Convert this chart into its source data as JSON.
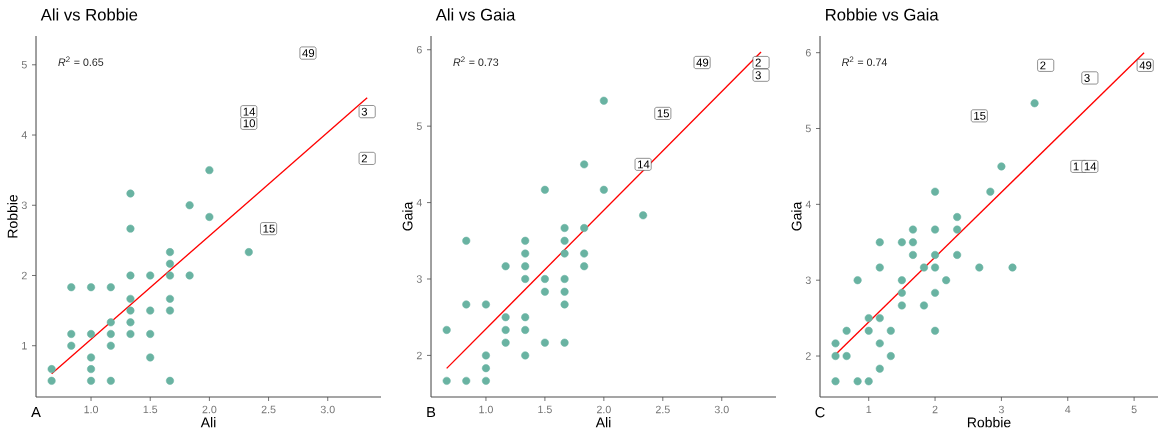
{
  "chart_data": [
    {
      "type": "scatter",
      "title": "Ali vs Robbie",
      "xlabel": "Ali",
      "ylabel": "Robbie",
      "marker": "circle",
      "xlim": [
        0.535,
        3.45
      ],
      "ylim": [
        0.27,
        5.41
      ],
      "xticks": [
        {
          "value": 1,
          "label": "1.0"
        },
        {
          "value": 1.5,
          "label": "1.5"
        },
        {
          "value": 2,
          "label": "2.0"
        },
        {
          "value": 2.5,
          "label": "2.5"
        },
        {
          "value": 3,
          "label": "3.0"
        }
      ],
      "yticks": [
        1,
        2,
        3,
        4,
        5
      ],
      "series": [
        {
          "color": "#69b3a2",
          "x": [
            0.667,
            0.667,
            0.833,
            0.833,
            0.833,
            1,
            1,
            1,
            1,
            1,
            1.167,
            1.167,
            1.167,
            1.167,
            1.167,
            1.333,
            1.333,
            1.333,
            1.333,
            1.333,
            1.333,
            1.333,
            1.5,
            1.5,
            1.5,
            1.5,
            1.667,
            1.667,
            1.667,
            1.667,
            1.667,
            1.667,
            1.833,
            1.833,
            2,
            2,
            2.333
          ],
          "values": [
            0.667,
            0.5,
            1.833,
            1.167,
            1,
            1.833,
            1.167,
            0.833,
            0.667,
            0.5,
            1.833,
            1.333,
            1.167,
            1,
            0.5,
            3.167,
            2.667,
            2,
            1.667,
            1.5,
            1.333,
            1.167,
            2,
            1.5,
            1.167,
            0.833,
            2.333,
            2.167,
            2,
            1.667,
            1.5,
            0.5,
            3,
            2,
            3.5,
            2.833,
            2.333
          ]
        },
        {
          "type": "line",
          "marker": "none",
          "color": "#ff0000",
          "x": [
            0.667,
            3.333
          ],
          "values": [
            0.6,
            4.53
          ]
        }
      ],
      "annotations": [
        "*R*$^{2}$ = 0.65",
        "A",
        {
          "text": "49",
          "x": 2.833,
          "y": 5.167
        },
        {
          "text": "10",
          "x": 2.333,
          "y": 4.167
        },
        {
          "text": "14",
          "x": 2.333,
          "y": 4.333
        },
        {
          "text": "3",
          "x": 3.333,
          "y": 4.333
        },
        {
          "text": "2",
          "x": 3.333,
          "y": 3.667
        },
        {
          "text": "15",
          "x": 2.5,
          "y": 2.667
        }
      ]
    },
    {
      "type": "scatter",
      "title": "Ali vs Gaia",
      "xlabel": "Ali",
      "ylabel": "Gaia",
      "marker": "circle",
      "xlim": [
        0.534,
        3.46
      ],
      "ylim": [
        1.456,
        6.18
      ],
      "xticks": [
        {
          "value": 1,
          "label": "1.0"
        },
        {
          "value": 1.5,
          "label": "1.5"
        },
        {
          "value": 2,
          "label": "2.0"
        },
        {
          "value": 2.5,
          "label": "2.5"
        },
        {
          "value": 3,
          "label": "3.0"
        }
      ],
      "yticks": [
        2,
        3,
        4,
        5,
        6
      ],
      "series": [
        {
          "color": "#69b3a2",
          "x": [
            0.667,
            0.667,
            0.833,
            0.833,
            0.833,
            1,
            1,
            1,
            1,
            1.167,
            1.167,
            1.167,
            1.167,
            1.333,
            1.333,
            1.333,
            1.333,
            1.333,
            1.333,
            1.333,
            1.5,
            1.5,
            1.5,
            1.5,
            1.667,
            1.667,
            1.667,
            1.667,
            1.667,
            1.667,
            1.667,
            1.833,
            1.833,
            1.833,
            1.833,
            2,
            2,
            2.333
          ],
          "values": [
            2.333,
            1.667,
            3.5,
            2.667,
            1.667,
            2.667,
            2,
            1.833,
            1.667,
            3.167,
            2.5,
            2.333,
            2.167,
            3.5,
            3.333,
            3.167,
            3,
            2.5,
            2.333,
            2,
            4.167,
            3,
            2.833,
            2.167,
            3.667,
            3.5,
            3.333,
            3,
            2.833,
            2.667,
            2.167,
            4.5,
            3.667,
            3.333,
            3.167,
            5.333,
            4.167,
            3.833
          ]
        },
        {
          "type": "line",
          "marker": "none",
          "color": "#ff0000",
          "x": [
            0.667,
            3.333
          ],
          "values": [
            1.83,
            5.97
          ]
        }
      ],
      "annotations": [
        "*R*$^{2}$ = 0.73",
        "B",
        {
          "text": "49",
          "x": 2.833,
          "y": 5.833
        },
        {
          "text": "2",
          "x": 3.333,
          "y": 5.833
        },
        {
          "text": "3",
          "x": 3.333,
          "y": 5.667
        },
        {
          "text": "15",
          "x": 2.5,
          "y": 5.167
        },
        {
          "text": "14",
          "x": 2.333,
          "y": 4.5
        }
      ]
    },
    {
      "type": "scatter",
      "title": "Robbie vs Gaia",
      "xlabel": "Robbie",
      "ylabel": "Gaia",
      "marker": "circle",
      "xlim": [
        0.266,
        5.36
      ],
      "ylim": [
        1.46,
        6.22
      ],
      "xticks": [
        1,
        2,
        3,
        4,
        5
      ],
      "yticks": [
        2,
        3,
        4,
        5,
        6
      ],
      "series": [
        {
          "color": "#69b3a2",
          "x": [
            0.5,
            0.5,
            0.5,
            0.667,
            0.667,
            0.833,
            0.833,
            1,
            1,
            1,
            1.167,
            1.167,
            1.167,
            1.167,
            1.167,
            1.333,
            1.333,
            1.5,
            1.5,
            1.5,
            1.5,
            1.667,
            1.667,
            1.667,
            1.833,
            1.833,
            2,
            2,
            2,
            2,
            2,
            2,
            2.167,
            2.333,
            2.333,
            2.333,
            2.667,
            2.833,
            3,
            3.167,
            3.5
          ],
          "values": [
            2.167,
            2,
            1.667,
            2.333,
            2,
            3,
            1.667,
            2.5,
            2.333,
            1.667,
            3.5,
            3.167,
            2.5,
            2.167,
            1.833,
            2.333,
            2,
            3.5,
            3,
            2.833,
            2.667,
            3.667,
            3.5,
            3.333,
            3.167,
            2.667,
            4.167,
            3.667,
            3.333,
            3.167,
            2.833,
            2.333,
            3,
            3.833,
            3.667,
            3.333,
            3.167,
            4.167,
            4.5,
            3.167,
            5.333
          ]
        },
        {
          "type": "line",
          "marker": "none",
          "color": "#ff0000",
          "x": [
            0.5,
            5.15
          ],
          "values": [
            2.02,
            6.0
          ]
        }
      ],
      "annotations": [
        "*R*$^{2}$ = 0.74",
        "C",
        {
          "text": "2",
          "x": 3.667,
          "y": 5.833
        },
        {
          "text": "3",
          "x": 4.333,
          "y": 5.667
        },
        {
          "text": "49",
          "x": 5.167,
          "y": 5.833
        },
        {
          "text": "15",
          "x": 2.667,
          "y": 5.167
        },
        {
          "text": "1",
          "x": 4.167,
          "y": 4.5
        },
        {
          "text": "14",
          "x": 4.333,
          "y": 4.5
        }
      ]
    }
  ]
}
